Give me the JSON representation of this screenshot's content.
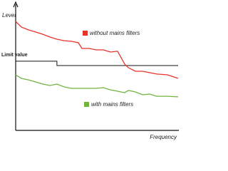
{
  "chart_data": {
    "type": "line",
    "y_label": "Level",
    "x_label": "Frequency",
    "x": [
      0,
      3.5,
      7.9,
      12.3,
      16.7,
      21.1,
      25.4,
      29.8,
      34.2,
      38.6,
      40.8,
      45.2,
      49.6,
      53.9,
      58.3,
      62.7,
      67.1,
      69.3,
      73.7,
      78.1,
      82.5,
      86.8,
      93.4,
      100
    ],
    "series": [
      {
        "name": "without mains filters",
        "color": "#e8332a",
        "values": [
          88.4,
          83.8,
          81.5,
          79.8,
          78.0,
          75.7,
          74.0,
          72.8,
          72.3,
          71.1,
          66.5,
          66.5,
          65.3,
          65.3,
          63.6,
          64.2,
          53.8,
          50.9,
          48.0,
          48.0,
          46.8,
          45.7,
          45.1,
          42.2
        ]
      },
      {
        "name": "with mains filters",
        "color": "#72b33e",
        "values": [
          45.1,
          42.2,
          41.0,
          39.3,
          37.6,
          36.4,
          37.6,
          35.3,
          34.1,
          34.1,
          34.1,
          34.1,
          34.1,
          34.7,
          32.9,
          31.8,
          30.6,
          32.4,
          31.2,
          28.9,
          29.5,
          27.7,
          27.7,
          27.2
        ]
      }
    ],
    "limit": {
      "label": "Limit value",
      "color": "#111111",
      "x": [
        0,
        25.4,
        25.4,
        100
      ],
      "values": [
        56.1,
        56.1,
        52.6,
        52.6
      ]
    },
    "xlim": [
      0,
      100
    ],
    "ylim": [
      0,
      100
    ]
  }
}
